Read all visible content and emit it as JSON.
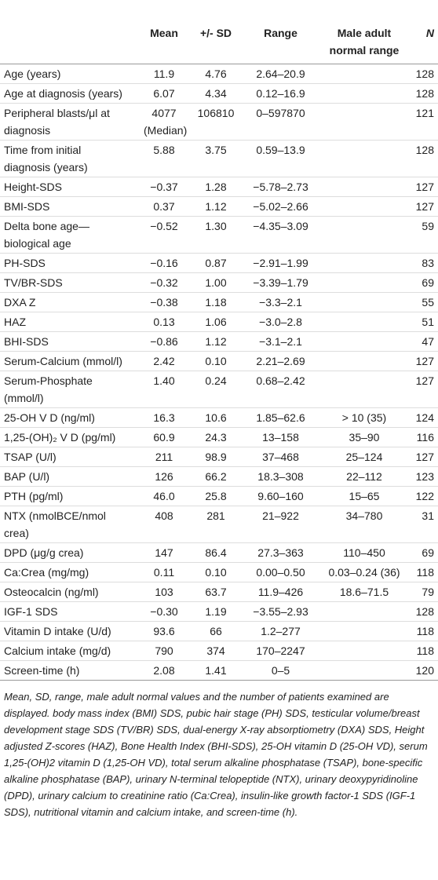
{
  "table": {
    "header": [
      null,
      "Mean",
      "+/- SD",
      "Range",
      "Male adult normal range",
      "N"
    ],
    "rows": [
      [
        "Age (years)",
        "11.9",
        "4.76",
        "2.64–20.9",
        null,
        "128"
      ],
      [
        "Age at diagnosis (years)",
        "6.07",
        "4.34",
        "0.12–16.9",
        null,
        "128"
      ],
      [
        "Peripheral blasts/μl at diagnosis",
        "4077 (Median)",
        "106810",
        "0–597870",
        null,
        "121"
      ],
      [
        "Time from initial diagnosis (years)",
        "5.88",
        "3.75",
        "0.59–13.9",
        null,
        "128"
      ],
      [
        "Height-SDS",
        "−0.37",
        "1.28",
        "−5.78–2.73",
        null,
        "127"
      ],
      [
        "BMI-SDS",
        "0.37",
        "1.12",
        "−5.02–2.66",
        null,
        "127"
      ],
      [
        "Delta bone age—biological age",
        "−0.52",
        "1.30",
        "−4.35–3.09",
        null,
        "59"
      ],
      [
        "PH-SDS",
        "−0.16",
        "0.87",
        "−2.91–1.99",
        null,
        "83"
      ],
      [
        "TV/BR-SDS",
        "−0.32",
        "1.00",
        "−3.39–1.79",
        null,
        "69"
      ],
      [
        "DXA Z",
        "−0.38",
        "1.18",
        "−3.3–2.1",
        null,
        "55"
      ],
      [
        "HAZ",
        "0.13",
        "1.06",
        "−3.0–2.8",
        null,
        "51"
      ],
      [
        "BHI-SDS",
        "−0.86",
        "1.12",
        "−3.1–2.1",
        null,
        "47"
      ],
      [
        "Serum-Calcium (mmol/l)",
        "2.42",
        "0.10",
        "2.21–2.69",
        null,
        "127"
      ],
      [
        "Serum-Phosphate (mmol/l)",
        "1.40",
        "0.24",
        "0.68–2.42",
        null,
        "127"
      ],
      [
        "25-OH V D (ng/ml)",
        "16.3",
        "10.6",
        "1.85–62.6",
        "> 10 (35)",
        "124"
      ],
      [
        "1,25-(OH)₂ V D (pg/ml)",
        "60.9",
        "24.3",
        "13–158",
        "35–90",
        "116"
      ],
      [
        "TSAP (U/l)",
        "211",
        "98.9",
        "37–468",
        "25–124",
        "127"
      ],
      [
        "BAP (U/l)",
        "126",
        "66.2",
        "18.3–308",
        "22–112",
        "123"
      ],
      [
        "PTH (pg/ml)",
        "46.0",
        "25.8",
        "9.60–160",
        "15–65",
        "122"
      ],
      [
        "NTX (nmolBCE/nmol crea)",
        "408",
        "281",
        "21–922",
        "34–780",
        "31"
      ],
      [
        "DPD (μg/g crea)",
        "147",
        "86.4",
        "27.3–363",
        "110–450",
        "69"
      ],
      [
        "Ca:Crea (mg/mg)",
        "0.11",
        "0.10",
        "0.00–0.50",
        "0.03–0.24 (36)",
        "118"
      ],
      [
        "Osteocalcin (ng/ml)",
        "103",
        "63.7",
        "11.9–426",
        "18.6–71.5",
        "79"
      ],
      [
        "IGF-1 SDS",
        "−0.30",
        "1.19",
        "−3.55–2.93",
        null,
        "128"
      ],
      [
        "Vitamin D intake (U/d)",
        "93.6",
        "66",
        "1.2–277",
        null,
        "118"
      ],
      [
        "Calcium intake (mg/d)",
        "790",
        "374",
        "170–2247",
        null,
        "118"
      ],
      [
        "Screen-time (h)",
        "2.08",
        "1.41",
        "0–5",
        null,
        "120"
      ]
    ]
  },
  "footnote": "Mean, SD, range, male adult normal values and the number of patients examined are displayed. body mass index (BMI) SDS, pubic hair stage (PH) SDS, testicular volume/breast development stage SDS (TV/BR) SDS, dual-energy X-ray absorptiometry (DXA) SDS, Height adjusted Z-scores (HAZ), Bone Health Index (BHI-SDS), 25-OH vitamin D (25-OH VD), serum 1,25-(OH)2 vitamin D (1,25-OH VD), total serum alkaline phosphatase (TSAP), bone-specific alkaline phosphatase (BAP), urinary N-terminal telopeptide (NTX), urinary deoxypyridinoline (DPD), urinary calcium to creatinine ratio (Ca:Crea), insulin-like growth factor-1 SDS (IGF-1 SDS), nutritional vitamin and calcium intake, and screen-time (h)."
}
